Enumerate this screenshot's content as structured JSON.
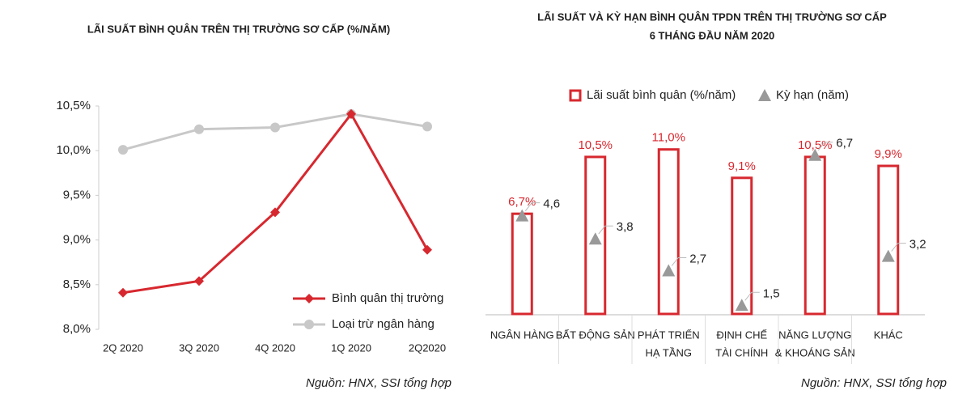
{
  "chart_data": [
    {
      "type": "line",
      "title": "LÃI SUẤT BÌNH QUÂN TRÊN THỊ TRƯỜNG SƠ CẤP (%/NĂM)",
      "categories": [
        "2Q 2020",
        "3Q 2020",
        "4Q 2020",
        "1Q 2020",
        "2Q2020"
      ],
      "series": [
        {
          "name": "Bình quân thị trường",
          "color": "#d7282f",
          "marker": "diamond",
          "values": [
            8.41,
            8.54,
            9.31,
            10.41,
            8.89
          ]
        },
        {
          "name": "Loại trừ ngân hàng",
          "color": "#c8c8c8",
          "marker": "circle",
          "values": [
            10.01,
            10.24,
            10.26,
            10.41,
            10.27
          ]
        }
      ],
      "ylim": [
        8,
        10.5
      ],
      "yticks": [
        {
          "value": 8,
          "label": "8,0%"
        },
        {
          "value": 8.5,
          "label": "8,5%"
        },
        {
          "value": 9,
          "label": "9,0%"
        },
        {
          "value": 9.5,
          "label": "9,5%"
        },
        {
          "value": 10,
          "label": "10,0%"
        },
        {
          "value": 10.5,
          "label": "10,5%"
        }
      ],
      "legend": "lower right",
      "source": "Nguồn: HNX, SSI tổng hợp"
    },
    {
      "type": "bar",
      "title": [
        "LÃI SUẤT VÀ KỲ HẠN BÌNH QUÂN TPDN TRÊN THỊ TRƯỜNG SƠ CẤP",
        "6 THÁNG ĐẦU NĂM 2020"
      ],
      "categories": [
        [
          "NGÂN HÀNG"
        ],
        [
          "BẤT ĐỘNG SẢN"
        ],
        [
          "PHÁT TRIỂN",
          "HẠ TẦNG"
        ],
        [
          "ĐỊNH CHẾ",
          "TÀI CHÍNH"
        ],
        [
          "NĂNG LƯỢNG",
          "& KHOÁNG SẢN"
        ],
        [
          "KHÁC"
        ]
      ],
      "series": [
        {
          "name": "Lãi suất bình quân (%/năm)",
          "color": "#d7282f",
          "values": [
            6.7,
            10.5,
            11.0,
            9.1,
            10.5,
            9.9
          ],
          "value_labels": [
            "6,7%",
            "10,5%",
            "11,0%",
            "9,1%",
            "10,5%",
            "9,9%"
          ]
        },
        {
          "name": "Kỳ hạn (năm)",
          "color": "#999999",
          "marker": "triangle",
          "axis": "y2",
          "values": [
            4.6,
            3.8,
            2.7,
            1.5,
            6.7,
            3.2
          ],
          "value_labels": [
            "4,6",
            "3,8",
            "2,7",
            "1,5",
            "6,7",
            "3,2"
          ]
        }
      ],
      "ylim": [
        0,
        11.2
      ],
      "y2lim": [
        1.2,
        7
      ],
      "legend": "top",
      "source": "Nguồn: HNX, SSI tổng hợp"
    }
  ]
}
